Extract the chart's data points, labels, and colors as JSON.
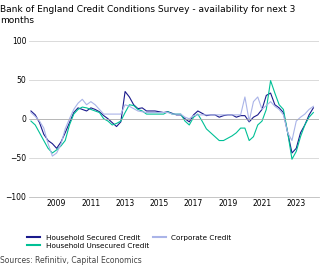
{
  "title": "Bank of England Credit Conditions Survey - availability for next 3\nmonths",
  "source": "Sources: Refinitiv, Capital Economics",
  "ylim": [
    -100,
    100
  ],
  "yticks": [
    -100,
    -50,
    0,
    50,
    100
  ],
  "xlim": [
    2007.4,
    2024.3
  ],
  "xticks": [
    2009,
    2011,
    2013,
    2015,
    2017,
    2019,
    2021,
    2023
  ],
  "colors": {
    "secured": "#1a1a8c",
    "unsecured": "#00c096",
    "corporate": "#aab4e8"
  },
  "legend": [
    {
      "label": "Household Secured Credit",
      "color": "#1a1a8c"
    },
    {
      "label": "Household Unsecured Credit",
      "color": "#00c096"
    },
    {
      "label": "Corporate Credit",
      "color": "#aab4e8"
    }
  ],
  "dates": [
    2007.5,
    2007.75,
    2008.0,
    2008.25,
    2008.5,
    2008.75,
    2009.0,
    2009.25,
    2009.5,
    2009.75,
    2010.0,
    2010.25,
    2010.5,
    2010.75,
    2011.0,
    2011.25,
    2011.5,
    2011.75,
    2012.0,
    2012.25,
    2012.5,
    2012.75,
    2013.0,
    2013.25,
    2013.5,
    2013.75,
    2014.0,
    2014.25,
    2014.5,
    2014.75,
    2015.0,
    2015.25,
    2015.5,
    2015.75,
    2016.0,
    2016.25,
    2016.5,
    2016.75,
    2017.0,
    2017.25,
    2017.5,
    2017.75,
    2018.0,
    2018.25,
    2018.5,
    2018.75,
    2019.0,
    2019.25,
    2019.5,
    2019.75,
    2020.0,
    2020.25,
    2020.5,
    2020.75,
    2021.0,
    2021.25,
    2021.5,
    2021.75,
    2022.0,
    2022.25,
    2022.5,
    2022.75,
    2023.0,
    2023.25,
    2023.5,
    2023.75,
    2024.0
  ],
  "values_secured": [
    10,
    5,
    -5,
    -20,
    -28,
    -32,
    -38,
    -30,
    -18,
    -5,
    8,
    14,
    12,
    10,
    14,
    12,
    9,
    4,
    0,
    -5,
    -10,
    -4,
    35,
    28,
    18,
    13,
    14,
    10,
    10,
    10,
    9,
    8,
    9,
    7,
    5,
    5,
    0,
    -4,
    5,
    10,
    7,
    4,
    5,
    5,
    2,
    4,
    5,
    5,
    2,
    4,
    4,
    -4,
    2,
    5,
    12,
    30,
    33,
    18,
    14,
    8,
    -18,
    -44,
    -38,
    -18,
    -8,
    5,
    14
  ],
  "values_unsecured": [
    -3,
    -8,
    -18,
    -28,
    -38,
    -44,
    -40,
    -35,
    -28,
    -8,
    6,
    12,
    15,
    14,
    12,
    10,
    8,
    0,
    -3,
    -8,
    -6,
    -3,
    8,
    18,
    17,
    12,
    10,
    6,
    6,
    6,
    6,
    6,
    9,
    6,
    6,
    6,
    -3,
    -8,
    2,
    6,
    -3,
    -13,
    -18,
    -23,
    -28,
    -28,
    -25,
    -22,
    -18,
    -12,
    -12,
    -28,
    -23,
    -8,
    -3,
    12,
    49,
    33,
    18,
    12,
    -18,
    -52,
    -42,
    -23,
    -8,
    2,
    8
  ],
  "values_corporate": [
    8,
    3,
    -3,
    -12,
    -32,
    -48,
    -44,
    -33,
    -13,
    0,
    12,
    20,
    25,
    18,
    22,
    18,
    12,
    6,
    6,
    6,
    6,
    6,
    18,
    16,
    13,
    10,
    9,
    8,
    8,
    8,
    8,
    8,
    8,
    6,
    6,
    6,
    2,
    0,
    4,
    5,
    5,
    5,
    5,
    5,
    5,
    5,
    5,
    5,
    5,
    5,
    28,
    -3,
    22,
    28,
    12,
    17,
    22,
    16,
    12,
    5,
    -18,
    -28,
    -3,
    2,
    6,
    12,
    16
  ]
}
